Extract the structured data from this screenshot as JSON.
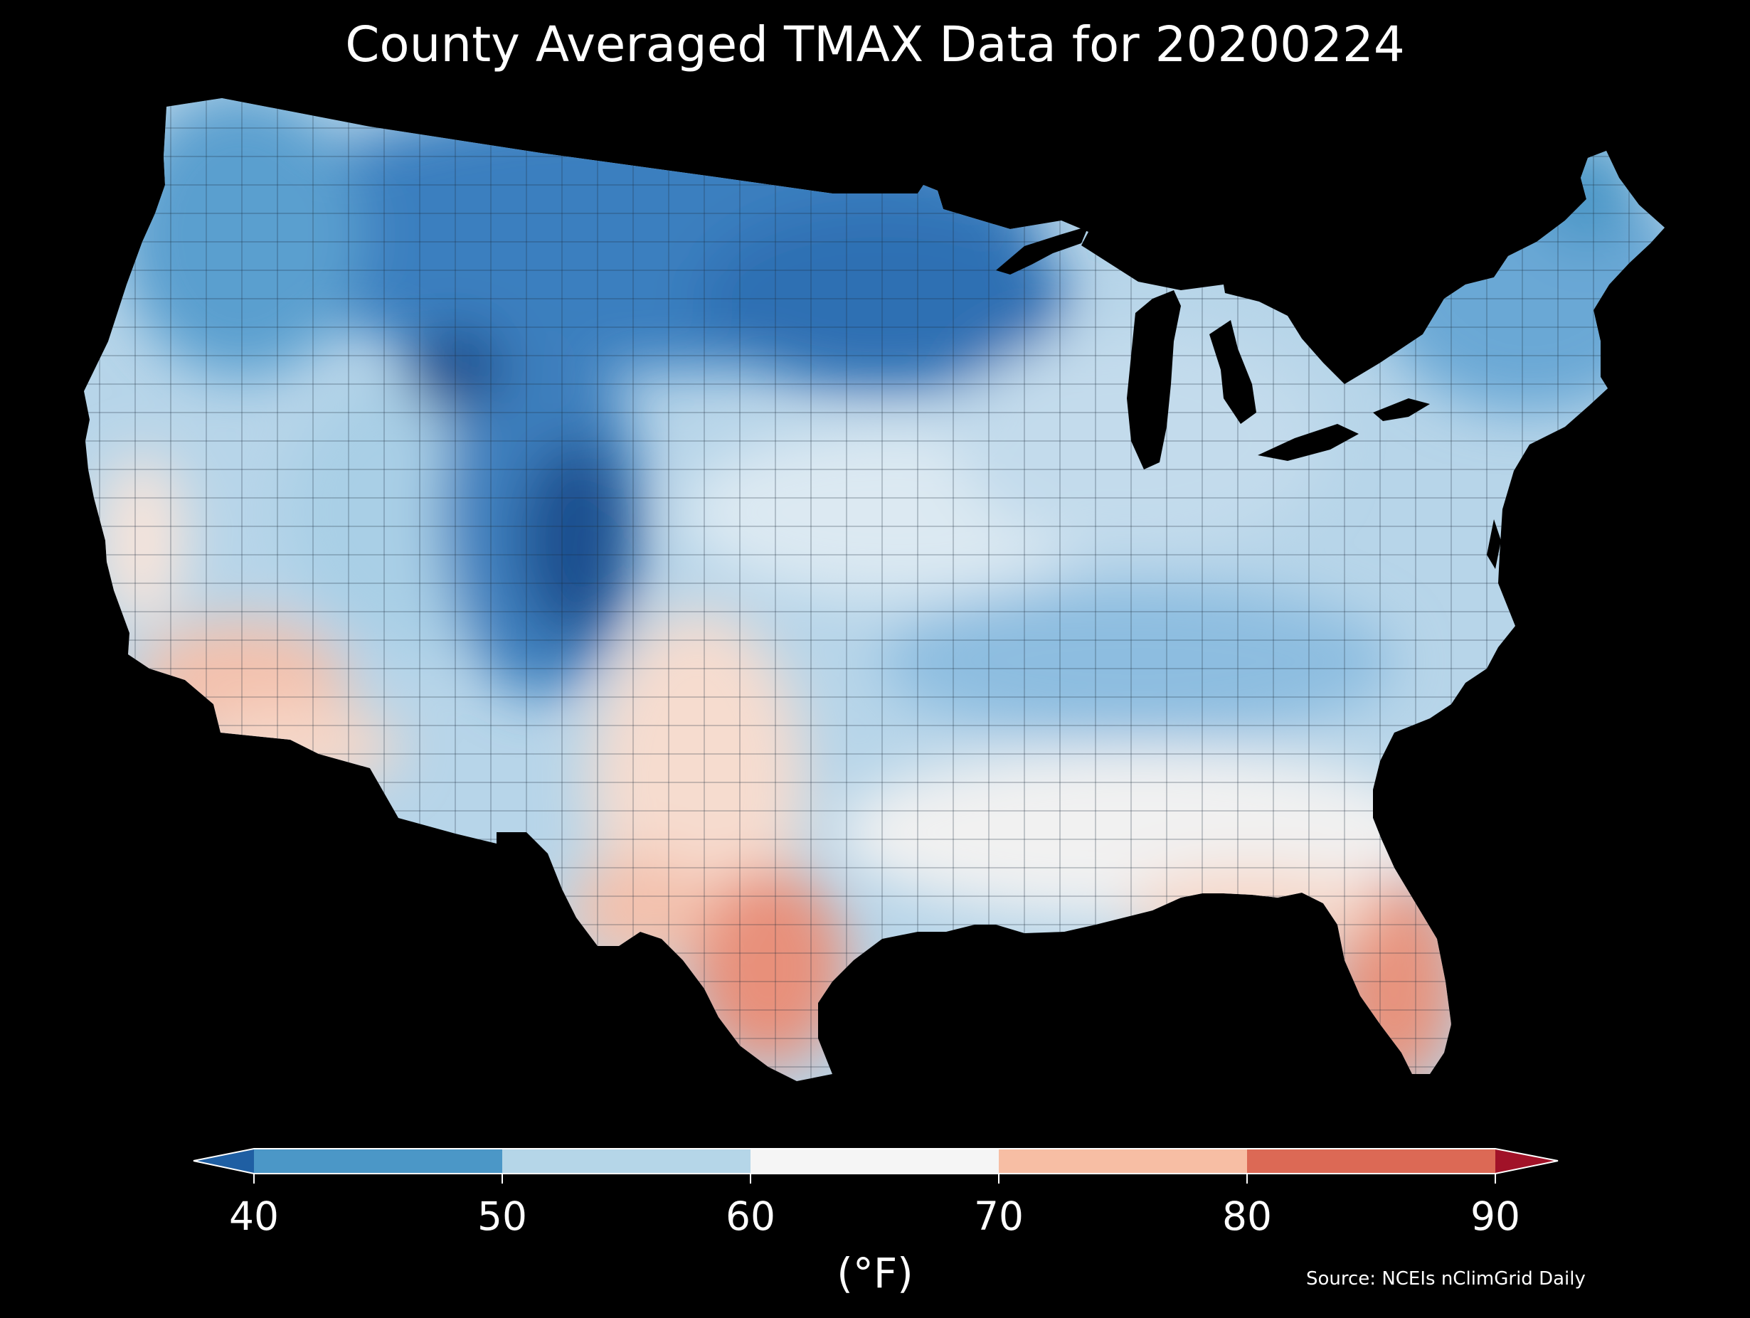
{
  "title": "County Averaged TMAX Data for 20200224",
  "colorbar": {
    "label": "(°F)",
    "ticks": [
      "40",
      "50",
      "60",
      "70",
      "80",
      "90"
    ],
    "bins": [
      {
        "range": "<40",
        "color": "#1f5fa3"
      },
      {
        "range": "40-50",
        "color": "#4b97c7"
      },
      {
        "range": "50-60",
        "color": "#b5d6e8"
      },
      {
        "range": "60-70",
        "color": "#f5f5f5"
      },
      {
        "range": "70-80",
        "color": "#f7bea4"
      },
      {
        "range": "80-90",
        "color": "#dc6955"
      },
      {
        "range": ">90",
        "color": "#a11228"
      }
    ],
    "extend": "both"
  },
  "source": "Source: NCEIs nClimGrid Daily",
  "map": {
    "region": "Contiguous United States",
    "variable": "TMAX",
    "date": "20200224",
    "units": "°F",
    "background": "#000000",
    "regions": [
      {
        "name": "northern-rockies-plains",
        "tmax_range": "40-50",
        "color": "#3a7fbf"
      },
      {
        "name": "pacific-northwest",
        "tmax_range": "40-50",
        "color": "#5a9fcf"
      },
      {
        "name": "great-basin",
        "tmax_range": "50-60",
        "color": "#a9cfe6"
      },
      {
        "name": "colorado-rockies",
        "tmax_range": "<40",
        "color": "#1d4f8f"
      },
      {
        "name": "central-plains",
        "tmax_range": "50-60",
        "color": "#c5dcec"
      },
      {
        "name": "ohio-valley",
        "tmax_range": "50-60",
        "color": "#9cc6e2"
      },
      {
        "name": "northeast",
        "tmax_range": "40-50",
        "color": "#6aa8d5"
      },
      {
        "name": "southeast",
        "tmax_range": "60-70",
        "color": "#f1f1f1"
      },
      {
        "name": "southern-california-arizona",
        "tmax_range": "70-80",
        "color": "#f3c1ad"
      },
      {
        "name": "south-texas",
        "tmax_range": "80-90",
        "color": "#e8907a"
      },
      {
        "name": "florida-peninsula",
        "tmax_range": "80-90",
        "color": "#e7937d"
      }
    ]
  }
}
